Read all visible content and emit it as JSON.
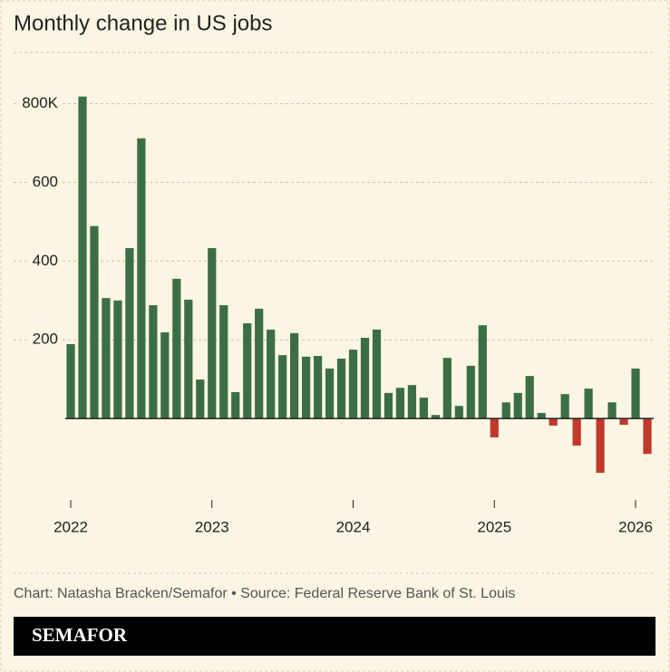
{
  "chart_data": {
    "type": "bar",
    "title": "Monthly change in US jobs",
    "source": "Chart: Natasha Bracken/Semafor • Source: Federal Reserve Bank of St. Louis",
    "brand": "SEMAFOR",
    "categories": [
      "2022",
      null,
      null,
      null,
      null,
      null,
      null,
      null,
      null,
      null,
      null,
      null,
      "2023",
      null,
      null,
      null,
      null,
      null,
      null,
      null,
      null,
      null,
      null,
      null,
      "2024",
      null,
      null,
      null,
      null,
      null,
      null,
      null,
      null,
      null,
      null,
      null,
      "2025",
      null,
      null,
      null,
      null,
      null,
      null,
      null,
      null,
      null,
      null,
      null,
      "2026",
      null
    ],
    "values": [
      189,
      818,
      489,
      306,
      300,
      433,
      712,
      288,
      219,
      355,
      302,
      99,
      433,
      288,
      67,
      242,
      279,
      226,
      161,
      217,
      157,
      159,
      127,
      152,
      175,
      205,
      226,
      65,
      78,
      85,
      53,
      9,
      154,
      32,
      134,
      237,
      -48,
      41,
      65,
      108,
      14,
      -18,
      62,
      -69,
      76,
      -138,
      41,
      -16,
      127,
      -90
    ],
    "color": "#3b6e44",
    "negative_color": "#c0392b",
    "ylim": [
      -200,
      930
    ],
    "yticks": [
      200,
      400,
      600,
      {
        "value": 800,
        "label": "800K"
      }
    ],
    "grid": true
  }
}
